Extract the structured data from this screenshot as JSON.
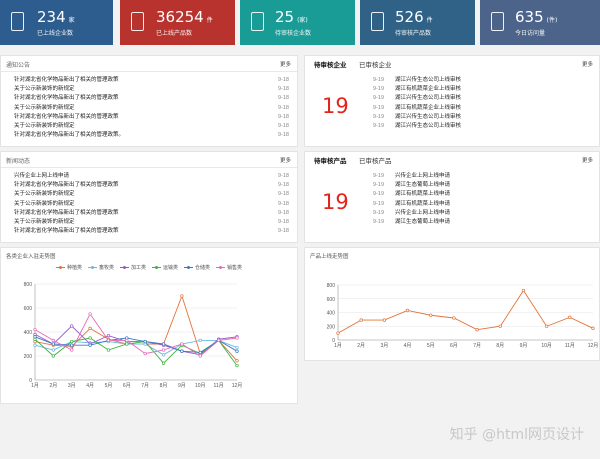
{
  "stats": [
    {
      "value": "234",
      "unit": "家",
      "label": "已上线企业数",
      "color": "#2c5d8e"
    },
    {
      "value": "36254",
      "unit": "件",
      "label": "已上线产品数",
      "color": "#b8322e"
    },
    {
      "value": "25",
      "unit": "(家)",
      "label": "待审核企业数",
      "color": "#1a9c96"
    },
    {
      "value": "526",
      "unit": "件",
      "label": "待审核产品数",
      "color": "#2f6286"
    },
    {
      "value": "635",
      "unit": "(件)",
      "label": "今日访问量",
      "color": "#4d648a"
    }
  ],
  "notice": {
    "title": "通知公告",
    "more": "更多",
    "items": [
      {
        "text": "针对湖北省化学物品新出了相关的管理政策",
        "date": "9-18"
      },
      {
        "text": "关于公示新装饰的新规定",
        "date": "9-18"
      },
      {
        "text": "针对湖北省化学物品新出了相关的管理政策",
        "date": "9-18"
      },
      {
        "text": "关于公示新装饰的新规定",
        "date": "9-18"
      },
      {
        "text": "针对湖北省化学物品新出了相关的管理政策",
        "date": "9-18"
      },
      {
        "text": "关于公示新装饰的新规定",
        "date": "9-18"
      },
      {
        "text": "针对湖北省化学物品新出了相关的管理政策。",
        "date": "9-18"
      }
    ]
  },
  "news": {
    "title": "新闻动态",
    "more": "更多",
    "items": [
      {
        "text": "兴传企业上网上线申请",
        "date": "9-18"
      },
      {
        "text": "针对湖北省化学物品新出了相关的管理政策",
        "date": "9-18"
      },
      {
        "text": "关于公示新装饰的新规定",
        "date": "9-18"
      },
      {
        "text": "关于公示新装饰的新规定",
        "date": "9-18"
      },
      {
        "text": "针对湖北省化学物品新出了相关的管理政策",
        "date": "9-18"
      },
      {
        "text": "关于公示新装饰的新规定",
        "date": "9-18"
      },
      {
        "text": "针对湖北省化学物品新出了相关的管理政策",
        "date": "9-18"
      }
    ]
  },
  "pending_enterprise": {
    "tab_active": "待审核企业",
    "tab_other": "已审核企业",
    "more": "更多",
    "count": "19",
    "items": [
      {
        "date": "9-19",
        "text": "湖江兴传生态公司上线审核"
      },
      {
        "date": "9-19",
        "text": "湖江有机蔬菜企业上线审核"
      },
      {
        "date": "9-19",
        "text": "湖江兴传生态公司上线审核"
      },
      {
        "date": "9-19",
        "text": "湖江有机蔬菜企业上线审核"
      },
      {
        "date": "9-19",
        "text": "湖江兴传生态公司上线审核"
      },
      {
        "date": "9-19",
        "text": "湖江兴传生态公司上线审核"
      }
    ]
  },
  "pending_product": {
    "tab_active": "待审核产品",
    "tab_other": "已审核产品",
    "more": "更多",
    "count": "19",
    "items": [
      {
        "date": "9-19",
        "text": "兴传企业上网上线申请"
      },
      {
        "date": "9-19",
        "text": "湖江生态葡萄上线申请"
      },
      {
        "date": "9-19",
        "text": "湖江有机蔬菜上线申请"
      },
      {
        "date": "9-19",
        "text": "湖江有机蔬菜上线申请"
      },
      {
        "date": "9-19",
        "text": "兴传企业上网上线申请"
      },
      {
        "date": "9-19",
        "text": "湖江生态葡萄上线申请"
      }
    ]
  },
  "chart_data": [
    {
      "type": "line",
      "title": "各类企业入驻走势图",
      "categories": [
        "1月",
        "2月",
        "3月",
        "4月",
        "5月",
        "6月",
        "7月",
        "8月",
        "9月",
        "10月",
        "11月",
        "12月"
      ],
      "ylim": [
        0,
        800
      ],
      "yticks": [
        0,
        200,
        400,
        600,
        800
      ],
      "series": [
        {
          "name": "种植类",
          "color": "#e2743a",
          "values": [
            320,
            290,
            280,
            430,
            340,
            300,
            300,
            300,
            700,
            220,
            330,
            160
          ]
        },
        {
          "name": "畜牧类",
          "color": "#6cb7e8",
          "values": [
            290,
            250,
            320,
            310,
            320,
            300,
            300,
            210,
            300,
            330,
            330,
            270
          ]
        },
        {
          "name": "加工类",
          "color": "#9b56c9",
          "values": [
            380,
            300,
            450,
            300,
            370,
            320,
            320,
            290,
            240,
            210,
            340,
            360
          ]
        },
        {
          "name": "运输类",
          "color": "#3fb23f",
          "values": [
            340,
            200,
            320,
            350,
            250,
            300,
            320,
            140,
            290,
            220,
            330,
            120
          ]
        },
        {
          "name": "仓储类",
          "color": "#3a78c4",
          "values": [
            360,
            300,
            290,
            290,
            330,
            350,
            320,
            300,
            240,
            230,
            330,
            240
          ]
        },
        {
          "name": "销售类",
          "color": "#e56bb6",
          "values": [
            420,
            330,
            250,
            550,
            330,
            330,
            220,
            250,
            300,
            200,
            330,
            350
          ]
        }
      ]
    },
    {
      "type": "line",
      "title": "产品上线走势图",
      "categories": [
        "1月",
        "2月",
        "3月",
        "4月",
        "5月",
        "6月",
        "7月",
        "8月",
        "9月",
        "10月",
        "11月",
        "12月"
      ],
      "ylim": [
        0,
        800
      ],
      "yticks": [
        0,
        200,
        400,
        600,
        800
      ],
      "series": [
        {
          "color": "#e2743a",
          "values": [
            100,
            290,
            290,
            430,
            360,
            320,
            150,
            200,
            720,
            200,
            330,
            170
          ]
        }
      ]
    }
  ],
  "watermark": "知乎 @html网页设计"
}
